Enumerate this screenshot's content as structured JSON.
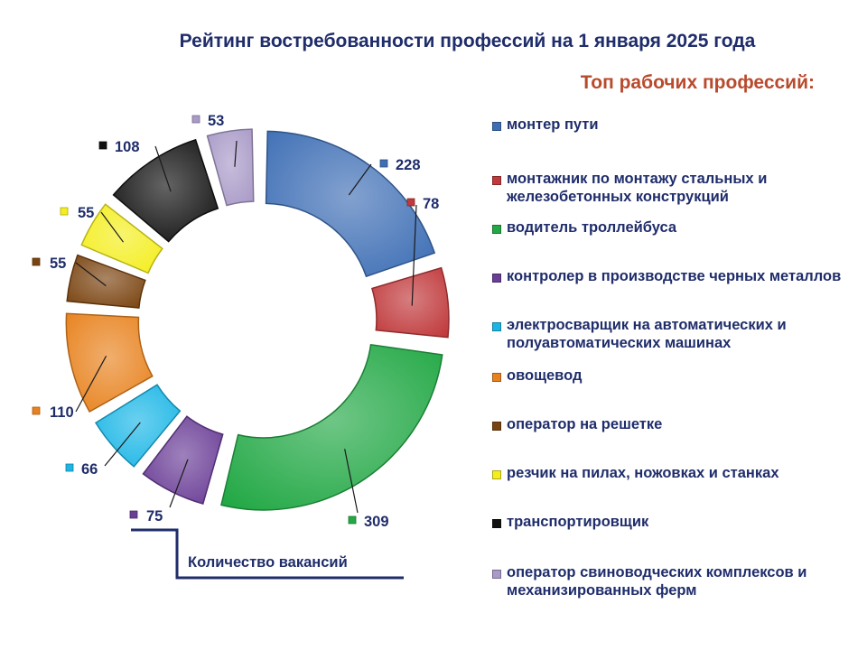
{
  "chart_data": {
    "type": "pie",
    "title": "Рейтинг востребованности профессий на 1 января 2025 года",
    "subtitle": "Топ рабочих профессий:",
    "caption": "Количество вакансий",
    "donut": true,
    "legend_position": "right",
    "slices": [
      {
        "label": "монтер пути",
        "value": 228,
        "value_label": "228",
        "color": "#3e6fb5"
      },
      {
        "label": "монтажник по монтажу стальных и железобетонных конструкций",
        "value": 78,
        "value_label": "78",
        "color": "#c0393b"
      },
      {
        "label": "водитель троллейбуса",
        "value": 309,
        "value_label": "309",
        "color": "#22a845"
      },
      {
        "label": "контролер в производстве черных металлов",
        "value": 75,
        "value_label": "75",
        "color": "#6a3d96"
      },
      {
        "label": "электросварщик на автоматических и полуавтоматических машинах",
        "value": 66,
        "value_label": "66",
        "color": "#1bb6e6"
      },
      {
        "label": "овощевод",
        "value": 110,
        "value_label": "110",
        "color": "#e8821e"
      },
      {
        "label": "оператор на решетке",
        "value": 55,
        "value_label": "55",
        "color": "#7a4410"
      },
      {
        "label": "резчик на пилах, ножовках и станках",
        "value": 55,
        "value_label": "55",
        "color": "#f4ee1e"
      },
      {
        "label": "транспортировщик",
        "value": 108,
        "value_label": "108",
        "color": "#111111"
      },
      {
        "label": "оператор свиноводческих комплексов и механизированных ферм",
        "value": 53,
        "value_label": "53",
        "color": "#a99ac7"
      }
    ]
  }
}
